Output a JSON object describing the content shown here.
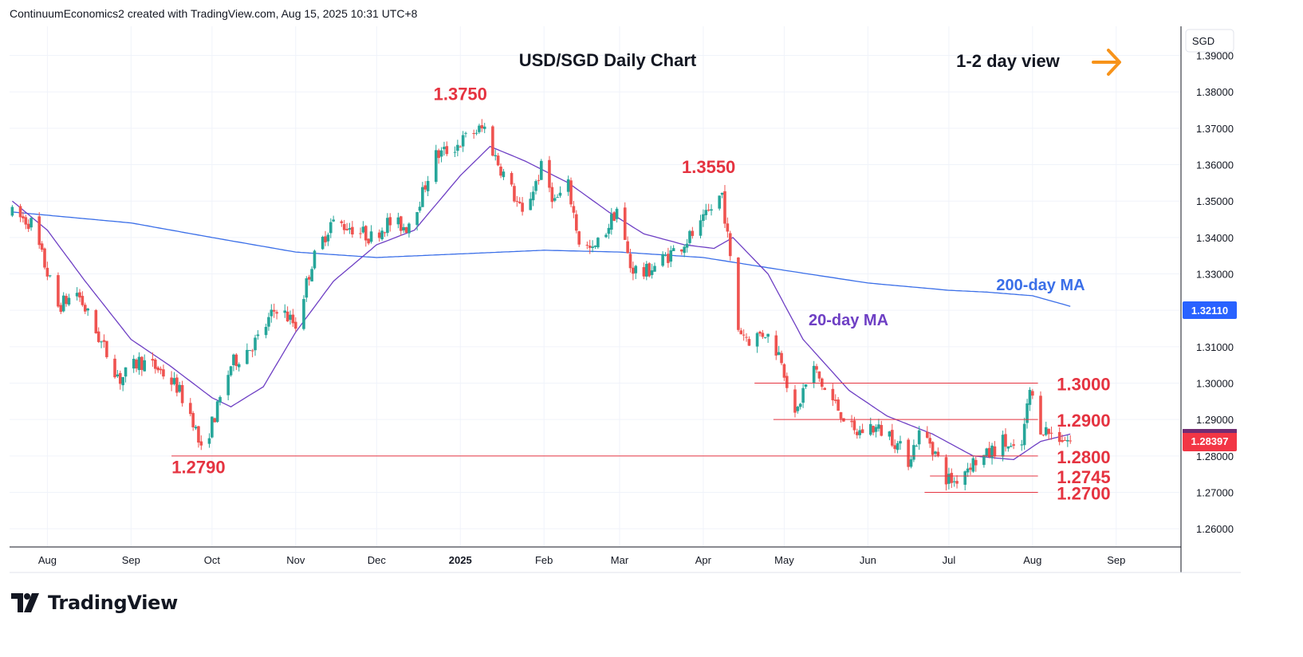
{
  "header": {
    "attribution": "ContinuumEconomics2 created with TradingView.com, Aug 15, 2025 10:31 UTC+8"
  },
  "chart_title": "USD/SGD Daily Chart",
  "view_label": "1-2 day view",
  "currency_label": "SGD",
  "brand": {
    "name": "TradingView"
  },
  "colors": {
    "up": "#26a69a",
    "down": "#ef5350",
    "level": "#e53340",
    "ma20": "#6e3fc4",
    "ma200": "#3b6fe8",
    "arrow": "#f7931a",
    "grid": "#f0f3fa",
    "axis_text": "#131722",
    "current_price_bg": "#f23645",
    "ma200_badge_bg": "#2962ff"
  },
  "chart_data": {
    "type": "candlestick",
    "title": "USD/SGD Daily Chart",
    "ylim": [
      1.255,
      1.398
    ],
    "y_ticks": [
      "1.39000",
      "1.38000",
      "1.37000",
      "1.36000",
      "1.35000",
      "1.34000",
      "1.33000",
      "1.32000",
      "1.31000",
      "1.30000",
      "1.29000",
      "1.28000",
      "1.27000",
      "1.26000"
    ],
    "x_labels": [
      {
        "label": "Aug",
        "date": "2024-08-01",
        "bold": false
      },
      {
        "label": "Sep",
        "date": "2024-09-01",
        "bold": false
      },
      {
        "label": "Oct",
        "date": "2024-10-01",
        "bold": false
      },
      {
        "label": "Nov",
        "date": "2024-11-01",
        "bold": false
      },
      {
        "label": "Dec",
        "date": "2024-12-01",
        "bold": false
      },
      {
        "label": "2025",
        "date": "2025-01-01",
        "bold": true
      },
      {
        "label": "Feb",
        "date": "2025-02-01",
        "bold": false
      },
      {
        "label": "Mar",
        "date": "2025-03-01",
        "bold": false
      },
      {
        "label": "Apr",
        "date": "2025-04-01",
        "bold": false
      },
      {
        "label": "May",
        "date": "2025-05-01",
        "bold": false
      },
      {
        "label": "Jun",
        "date": "2025-06-01",
        "bold": false
      },
      {
        "label": "Jul",
        "date": "2025-07-01",
        "bold": false
      },
      {
        "label": "Aug",
        "date": "2025-08-01",
        "bold": false
      },
      {
        "label": "Sep",
        "date": "2025-09-01",
        "bold": false
      }
    ],
    "price_anchors": [
      [
        "2024-07-19",
        1.3465
      ],
      [
        "2024-07-26",
        1.344
      ],
      [
        "2024-08-05",
        1.321
      ],
      [
        "2024-08-12",
        1.325
      ],
      [
        "2024-08-21",
        1.311
      ],
      [
        "2024-08-28",
        1.301
      ],
      [
        "2024-09-04",
        1.306
      ],
      [
        "2024-09-11",
        1.304
      ],
      [
        "2024-09-18",
        1.299
      ],
      [
        "2024-09-24",
        1.29
      ],
      [
        "2024-09-27",
        1.281
      ],
      [
        "2024-10-03",
        1.293
      ],
      [
        "2024-10-08",
        1.305
      ],
      [
        "2024-10-18",
        1.312
      ],
      [
        "2024-10-25",
        1.321
      ],
      [
        "2024-11-01",
        1.316
      ],
      [
        "2024-11-07",
        1.333
      ],
      [
        "2024-11-14",
        1.344
      ],
      [
        "2024-11-21",
        1.343
      ],
      [
        "2024-11-29",
        1.34
      ],
      [
        "2024-12-05",
        1.344
      ],
      [
        "2024-12-12",
        1.343
      ],
      [
        "2024-12-18",
        1.352
      ],
      [
        "2024-12-22",
        1.362
      ],
      [
        "2024-12-30",
        1.365
      ],
      [
        "2025-01-06",
        1.369
      ],
      [
        "2025-01-10",
        1.37
      ],
      [
        "2025-01-14",
        1.362
      ],
      [
        "2025-01-20",
        1.353
      ],
      [
        "2025-01-24",
        1.346
      ],
      [
        "2025-01-31",
        1.359
      ],
      [
        "2025-02-05",
        1.35
      ],
      [
        "2025-02-10",
        1.354
      ],
      [
        "2025-02-14",
        1.339
      ],
      [
        "2025-02-19",
        1.336
      ],
      [
        "2025-02-24",
        1.342
      ],
      [
        "2025-02-28",
        1.348
      ],
      [
        "2025-03-05",
        1.332
      ],
      [
        "2025-03-10",
        1.33
      ],
      [
        "2025-03-17",
        1.334
      ],
      [
        "2025-03-24",
        1.338
      ],
      [
        "2025-03-31",
        1.343
      ],
      [
        "2025-04-04",
        1.348
      ],
      [
        "2025-04-08",
        1.352
      ],
      [
        "2025-04-10",
        1.34
      ],
      [
        "2025-04-14",
        1.315
      ],
      [
        "2025-04-18",
        1.312
      ],
      [
        "2025-04-24",
        1.314
      ],
      [
        "2025-04-30",
        1.307
      ],
      [
        "2025-05-05",
        1.29
      ],
      [
        "2025-05-08",
        1.298
      ],
      [
        "2025-05-12",
        1.304
      ],
      [
        "2025-05-16",
        1.298
      ],
      [
        "2025-05-22",
        1.292
      ],
      [
        "2025-05-27",
        1.286
      ],
      [
        "2025-06-02",
        1.288
      ],
      [
        "2025-06-09",
        1.286
      ],
      [
        "2025-06-16",
        1.279
      ],
      [
        "2025-06-20",
        1.286
      ],
      [
        "2025-06-24",
        1.284
      ],
      [
        "2025-06-30",
        1.274
      ],
      [
        "2025-07-03",
        1.273
      ],
      [
        "2025-07-09",
        1.278
      ],
      [
        "2025-07-15",
        1.28
      ],
      [
        "2025-07-21",
        1.284
      ],
      [
        "2025-07-25",
        1.281
      ],
      [
        "2025-07-28",
        1.283
      ],
      [
        "2025-07-31",
        1.298
      ],
      [
        "2025-08-04",
        1.288
      ],
      [
        "2025-08-08",
        1.286
      ],
      [
        "2025-08-12",
        1.285
      ],
      [
        "2025-08-15",
        1.284
      ]
    ],
    "ma_200_anchors": [
      [
        "2024-07-19",
        1.347
      ],
      [
        "2024-09-01",
        1.344
      ],
      [
        "2024-10-01",
        1.34
      ],
      [
        "2024-11-01",
        1.336
      ],
      [
        "2024-12-01",
        1.3345
      ],
      [
        "2025-01-01",
        1.3355
      ],
      [
        "2025-02-01",
        1.3365
      ],
      [
        "2025-03-01",
        1.336
      ],
      [
        "2025-04-01",
        1.3345
      ],
      [
        "2025-05-01",
        1.331
      ],
      [
        "2025-06-01",
        1.3275
      ],
      [
        "2025-07-01",
        1.3255
      ],
      [
        "2025-07-15",
        1.325
      ],
      [
        "2025-08-01",
        1.324
      ],
      [
        "2025-08-15",
        1.3211
      ]
    ],
    "ma_20_anchors": [
      [
        "2024-07-19",
        1.35
      ],
      [
        "2024-08-01",
        1.342
      ],
      [
        "2024-08-15",
        1.328
      ],
      [
        "2024-09-01",
        1.312
      ],
      [
        "2024-09-15",
        1.305
      ],
      [
        "2024-10-01",
        1.296
      ],
      [
        "2024-10-08",
        1.2935
      ],
      [
        "2024-10-20",
        1.299
      ],
      [
        "2024-11-01",
        1.314
      ],
      [
        "2024-11-15",
        1.328
      ],
      [
        "2024-12-01",
        1.338
      ],
      [
        "2024-12-15",
        1.342
      ],
      [
        "2025-01-01",
        1.357
      ],
      [
        "2025-01-12",
        1.365
      ],
      [
        "2025-01-25",
        1.361
      ],
      [
        "2025-02-10",
        1.355
      ],
      [
        "2025-02-25",
        1.347
      ],
      [
        "2025-03-10",
        1.341
      ],
      [
        "2025-03-25",
        1.338
      ],
      [
        "2025-04-05",
        1.337
      ],
      [
        "2025-04-12",
        1.34
      ],
      [
        "2025-04-25",
        1.33
      ],
      [
        "2025-05-08",
        1.312
      ],
      [
        "2025-05-25",
        1.298
      ],
      [
        "2025-06-08",
        1.291
      ],
      [
        "2025-06-25",
        1.286
      ],
      [
        "2025-07-10",
        1.28
      ],
      [
        "2025-07-25",
        1.279
      ],
      [
        "2025-08-04",
        1.284
      ],
      [
        "2025-08-15",
        1.286
      ]
    ],
    "ma_200_value": "1.32110",
    "last_price": "1.28397",
    "ma_labels": [
      {
        "name": "200-day MA",
        "color": "#3b6fe8"
      },
      {
        "name": "20-day MA",
        "color": "#6e3fc4"
      }
    ],
    "levels": [
      {
        "label": "1.3000",
        "value": 1.3,
        "from": "2025-04-20",
        "to": "2025-08-03",
        "label_date": "2025-08-10",
        "label_side": "right"
      },
      {
        "label": "1.2900",
        "value": 1.29,
        "from": "2025-04-27",
        "to": "2025-08-03",
        "label_date": "2025-08-10",
        "label_side": "right"
      },
      {
        "label": "1.2800",
        "value": 1.28,
        "from": "2024-09-16",
        "to": "2025-08-03",
        "label_date": "2025-08-10",
        "label_side": "right"
      },
      {
        "label": "1.2745",
        "value": 1.2745,
        "from": "2025-06-24",
        "to": "2025-08-03",
        "label_date": "2025-08-10",
        "label_side": "right"
      },
      {
        "label": "1.2700",
        "value": 1.27,
        "from": "2025-06-22",
        "to": "2025-08-03",
        "label_date": "2025-08-10",
        "label_side": "right"
      }
    ],
    "annotations": [
      {
        "label": "1.3750",
        "date": "2025-01-01",
        "value": 1.376
      },
      {
        "label": "1.3550",
        "date": "2025-04-03",
        "value": 1.356
      },
      {
        "label": "1.2790",
        "date": "2024-09-26",
        "value": 1.2735
      }
    ]
  }
}
